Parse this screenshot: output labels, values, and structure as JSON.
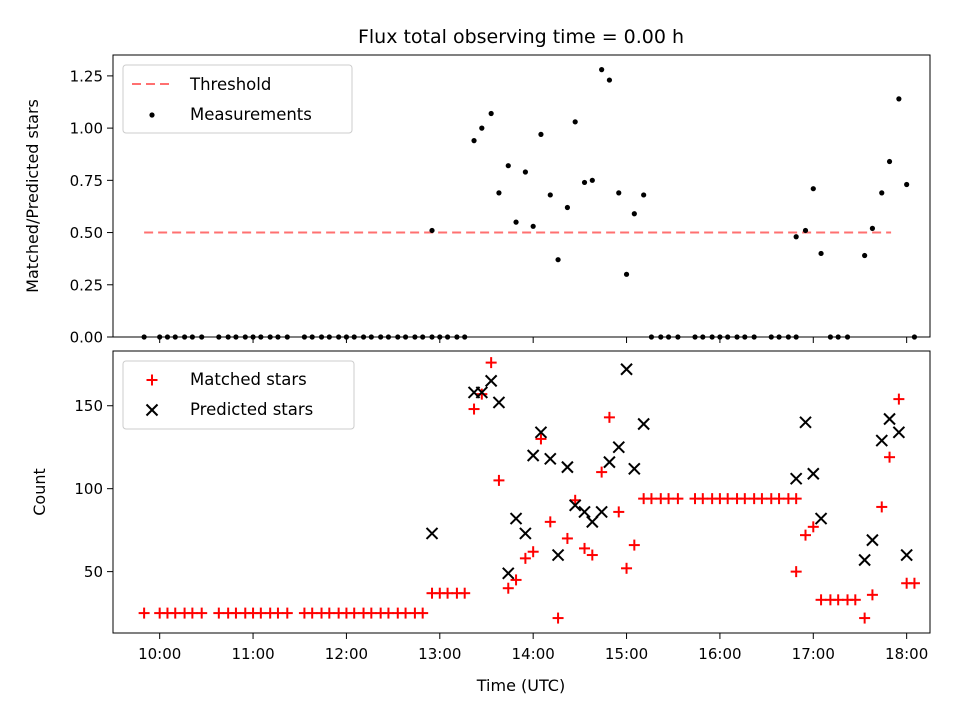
{
  "chart_data": [
    {
      "type": "scatter",
      "title": "Flux total observing time = 0.00 h",
      "xlabel": "",
      "ylabel": "Matched/Predicted stars",
      "xlim": [
        "09:30",
        "18:15"
      ],
      "ylim": [
        0,
        1.35
      ],
      "yticks": [
        "0.00",
        "0.25",
        "0.50",
        "0.75",
        "1.00",
        "1.25"
      ],
      "legend": "top-left",
      "threshold": {
        "name": "Threshold",
        "value": 0.5,
        "x_range": [
          "09:50",
          "17:50"
        ],
        "color": "#ff7070"
      },
      "series": [
        {
          "name": "Measurements",
          "color": "#000000",
          "points": [
            [
              "09:50",
              0
            ],
            [
              "10:00",
              0
            ],
            [
              "10:05",
              0
            ],
            [
              "10:10",
              0
            ],
            [
              "10:16",
              0
            ],
            [
              "10:21",
              0
            ],
            [
              "10:27",
              0
            ],
            [
              "10:38",
              0
            ],
            [
              "10:44",
              0
            ],
            [
              "10:49",
              0
            ],
            [
              "10:55",
              0
            ],
            [
              "11:00",
              0
            ],
            [
              "11:05",
              0
            ],
            [
              "11:11",
              0
            ],
            [
              "11:16",
              0
            ],
            [
              "11:22",
              0
            ],
            [
              "11:33",
              0
            ],
            [
              "11:38",
              0
            ],
            [
              "11:44",
              0
            ],
            [
              "11:49",
              0
            ],
            [
              "11:55",
              0
            ],
            [
              "12:00",
              0
            ],
            [
              "12:05",
              0
            ],
            [
              "12:11",
              0
            ],
            [
              "12:16",
              0
            ],
            [
              "12:22",
              0
            ],
            [
              "12:27",
              0
            ],
            [
              "12:33",
              0
            ],
            [
              "12:38",
              0
            ],
            [
              "12:44",
              0
            ],
            [
              "12:49",
              0
            ],
            [
              "12:55",
              0
            ],
            [
              "12:55",
              0.51
            ],
            [
              "13:00",
              0
            ],
            [
              "13:05",
              0
            ],
            [
              "13:11",
              0
            ],
            [
              "13:16",
              0
            ],
            [
              "13:22",
              0.94
            ],
            [
              "13:27",
              1.0
            ],
            [
              "13:33",
              1.07
            ],
            [
              "13:38",
              0.69
            ],
            [
              "13:44",
              0.82
            ],
            [
              "13:49",
              0.55
            ],
            [
              "13:55",
              0.79
            ],
            [
              "14:00",
              0.53
            ],
            [
              "14:05",
              0.97
            ],
            [
              "14:11",
              0.68
            ],
            [
              "14:16",
              0.37
            ],
            [
              "14:22",
              0.62
            ],
            [
              "14:27",
              1.03
            ],
            [
              "14:33",
              0.74
            ],
            [
              "14:38",
              0.75
            ],
            [
              "14:44",
              1.28
            ],
            [
              "14:49",
              1.23
            ],
            [
              "14:55",
              0.69
            ],
            [
              "15:00",
              0.3
            ],
            [
              "15:05",
              0.59
            ],
            [
              "15:11",
              0.68
            ],
            [
              "15:16",
              0
            ],
            [
              "15:22",
              0
            ],
            [
              "15:27",
              0
            ],
            [
              "15:33",
              0
            ],
            [
              "15:44",
              0
            ],
            [
              "15:49",
              0
            ],
            [
              "15:55",
              0
            ],
            [
              "16:00",
              0
            ],
            [
              "16:05",
              0
            ],
            [
              "16:11",
              0
            ],
            [
              "16:16",
              0
            ],
            [
              "16:22",
              0
            ],
            [
              "16:33",
              0
            ],
            [
              "16:38",
              0
            ],
            [
              "16:44",
              0
            ],
            [
              "16:49",
              0
            ],
            [
              "16:49",
              0.48
            ],
            [
              "16:55",
              0.51
            ],
            [
              "17:00",
              0.71
            ],
            [
              "17:05",
              0.4
            ],
            [
              "17:11",
              0
            ],
            [
              "17:16",
              0
            ],
            [
              "17:22",
              0
            ],
            [
              "17:33",
              0.39
            ],
            [
              "17:38",
              0.52
            ],
            [
              "17:44",
              0.69
            ],
            [
              "17:49",
              0.84
            ],
            [
              "17:55",
              1.14
            ],
            [
              "18:00",
              0.73
            ],
            [
              "18:05",
              0
            ]
          ]
        }
      ]
    },
    {
      "type": "scatter",
      "xlabel": "Time (UTC)",
      "ylabel": "Count",
      "xlim": [
        "09:30",
        "18:15"
      ],
      "ylim": [
        13,
        183
      ],
      "xticks": [
        "10:00",
        "11:00",
        "12:00",
        "13:00",
        "14:00",
        "15:00",
        "16:00",
        "17:00",
        "18:00"
      ],
      "yticks": [
        "50",
        "100",
        "150"
      ],
      "legend": "top-left",
      "series": [
        {
          "name": "Matched stars",
          "marker": "plus",
          "color": "#ff0000",
          "points": [
            [
              "09:50",
              25
            ],
            [
              "10:00",
              25
            ],
            [
              "10:05",
              25
            ],
            [
              "10:10",
              25
            ],
            [
              "10:16",
              25
            ],
            [
              "10:21",
              25
            ],
            [
              "10:27",
              25
            ],
            [
              "10:38",
              25
            ],
            [
              "10:44",
              25
            ],
            [
              "10:49",
              25
            ],
            [
              "10:55",
              25
            ],
            [
              "11:00",
              25
            ],
            [
              "11:05",
              25
            ],
            [
              "11:11",
              25
            ],
            [
              "11:16",
              25
            ],
            [
              "11:22",
              25
            ],
            [
              "11:33",
              25
            ],
            [
              "11:38",
              25
            ],
            [
              "11:44",
              25
            ],
            [
              "11:49",
              25
            ],
            [
              "11:55",
              25
            ],
            [
              "12:00",
              25
            ],
            [
              "12:05",
              25
            ],
            [
              "12:11",
              25
            ],
            [
              "12:16",
              25
            ],
            [
              "12:22",
              25
            ],
            [
              "12:27",
              25
            ],
            [
              "12:33",
              25
            ],
            [
              "12:38",
              25
            ],
            [
              "12:44",
              25
            ],
            [
              "12:49",
              25
            ],
            [
              "12:55",
              37
            ],
            [
              "13:00",
              37
            ],
            [
              "13:05",
              37
            ],
            [
              "13:11",
              37
            ],
            [
              "13:16",
              37
            ],
            [
              "13:22",
              148
            ],
            [
              "13:27",
              157
            ],
            [
              "13:33",
              176
            ],
            [
              "13:38",
              105
            ],
            [
              "13:44",
              40
            ],
            [
              "13:49",
              45
            ],
            [
              "13:55",
              58
            ],
            [
              "14:00",
              62
            ],
            [
              "14:05",
              130
            ],
            [
              "14:11",
              80
            ],
            [
              "14:16",
              22
            ],
            [
              "14:22",
              70
            ],
            [
              "14:27",
              93
            ],
            [
              "14:33",
              64
            ],
            [
              "14:38",
              60
            ],
            [
              "14:44",
              110
            ],
            [
              "14:49",
              143
            ],
            [
              "14:55",
              86
            ],
            [
              "15:00",
              52
            ],
            [
              "15:05",
              66
            ],
            [
              "15:11",
              94
            ],
            [
              "15:16",
              94
            ],
            [
              "15:22",
              94
            ],
            [
              "15:27",
              94
            ],
            [
              "15:33",
              94
            ],
            [
              "15:44",
              94
            ],
            [
              "15:49",
              94
            ],
            [
              "15:55",
              94
            ],
            [
              "16:00",
              94
            ],
            [
              "16:05",
              94
            ],
            [
              "16:11",
              94
            ],
            [
              "16:16",
              94
            ],
            [
              "16:22",
              94
            ],
            [
              "16:27",
              94
            ],
            [
              "16:33",
              94
            ],
            [
              "16:38",
              94
            ],
            [
              "16:44",
              94
            ],
            [
              "16:49",
              94
            ],
            [
              "16:49",
              50
            ],
            [
              "16:55",
              72
            ],
            [
              "17:00",
              77
            ],
            [
              "17:05",
              33
            ],
            [
              "17:11",
              33
            ],
            [
              "17:16",
              33
            ],
            [
              "17:22",
              33
            ],
            [
              "17:27",
              33
            ],
            [
              "17:33",
              22
            ],
            [
              "17:38",
              36
            ],
            [
              "17:44",
              89
            ],
            [
              "17:49",
              119
            ],
            [
              "17:55",
              154
            ],
            [
              "18:00",
              43
            ],
            [
              "18:05",
              43
            ]
          ]
        },
        {
          "name": "Predicted stars",
          "marker": "x",
          "color": "#000000",
          "points": [
            [
              "12:55",
              73
            ],
            [
              "13:22",
              158
            ],
            [
              "13:27",
              158
            ],
            [
              "13:33",
              165
            ],
            [
              "13:38",
              152
            ],
            [
              "13:44",
              49
            ],
            [
              "13:49",
              82
            ],
            [
              "13:55",
              73
            ],
            [
              "14:00",
              120
            ],
            [
              "14:05",
              134
            ],
            [
              "14:11",
              118
            ],
            [
              "14:16",
              60
            ],
            [
              "14:22",
              113
            ],
            [
              "14:27",
              90
            ],
            [
              "14:33",
              86
            ],
            [
              "14:38",
              80
            ],
            [
              "14:44",
              86
            ],
            [
              "14:49",
              116
            ],
            [
              "14:55",
              125
            ],
            [
              "15:00",
              172
            ],
            [
              "15:05",
              112
            ],
            [
              "15:11",
              139
            ],
            [
              "16:49",
              106
            ],
            [
              "16:55",
              140
            ],
            [
              "17:00",
              109
            ],
            [
              "17:05",
              82
            ],
            [
              "17:33",
              57
            ],
            [
              "17:38",
              69
            ],
            [
              "17:44",
              129
            ],
            [
              "17:49",
              142
            ],
            [
              "17:55",
              134
            ],
            [
              "18:00",
              60
            ]
          ]
        }
      ]
    }
  ]
}
